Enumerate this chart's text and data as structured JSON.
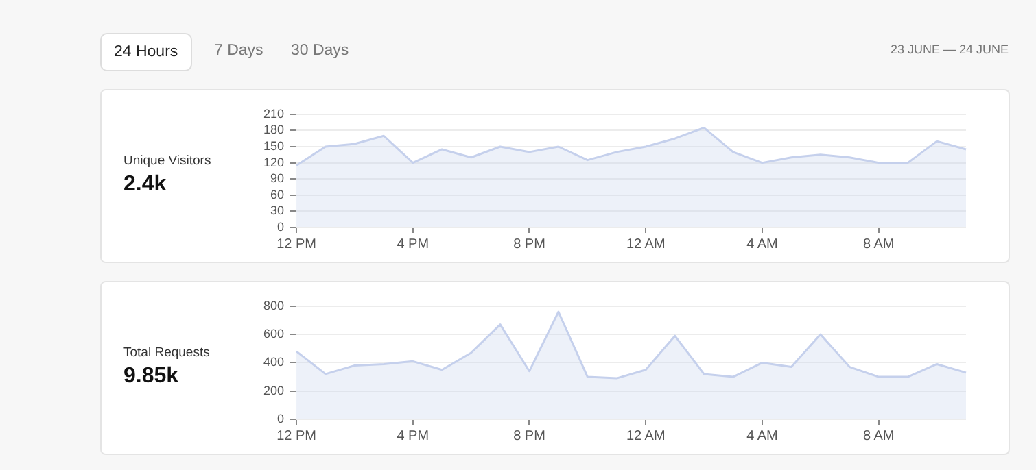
{
  "chart_data": [
    {
      "type": "other",
      "annotations": [
        "24 Hours",
        "7 Days",
        "30 Days",
        "23 JUNE — 24 JUNE"
      ]
    },
    {
      "type": "area",
      "title": "Unique Visitors",
      "annotations": [
        "2.4k"
      ],
      "categories": [
        "12 PM",
        null,
        null,
        null,
        "4 PM",
        null,
        null,
        null,
        "8 PM",
        null,
        null,
        null,
        "12 AM",
        null,
        null,
        null,
        "4 AM",
        null,
        null,
        null,
        "8 AM",
        null,
        null,
        null
      ],
      "series": [
        {
          "color": "#c5d0ec",
          "values": [
            115,
            150,
            155,
            170,
            120,
            145,
            130,
            150,
            140,
            150,
            125,
            140,
            150,
            165,
            185,
            140,
            120,
            130,
            135,
            130,
            120,
            120,
            160,
            145
          ]
        }
      ],
      "ylim": [
        0,
        210
      ],
      "yticks": [
        0,
        30,
        60,
        90,
        120,
        150,
        180,
        210
      ],
      "grid": "y",
      "legend": false,
      "marker": "none"
    },
    {
      "type": "area",
      "title": "Total Requests",
      "annotations": [
        "9.85k"
      ],
      "categories": [
        "12 PM",
        null,
        null,
        null,
        "4 PM",
        null,
        null,
        null,
        "8 PM",
        null,
        null,
        null,
        "12 AM",
        null,
        null,
        null,
        "4 AM",
        null,
        null,
        null,
        "8 AM",
        null,
        null,
        null
      ],
      "series": [
        {
          "color": "#c5d0ec",
          "values": [
            480,
            320,
            380,
            390,
            410,
            350,
            470,
            670,
            340,
            760,
            300,
            290,
            350,
            590,
            320,
            300,
            400,
            370,
            600,
            370,
            300,
            300,
            390,
            330
          ]
        }
      ],
      "ylim": [
        0,
        800
      ],
      "yticks": [
        0,
        200,
        400,
        600,
        800
      ],
      "grid": "y",
      "legend": false,
      "marker": "none"
    }
  ]
}
